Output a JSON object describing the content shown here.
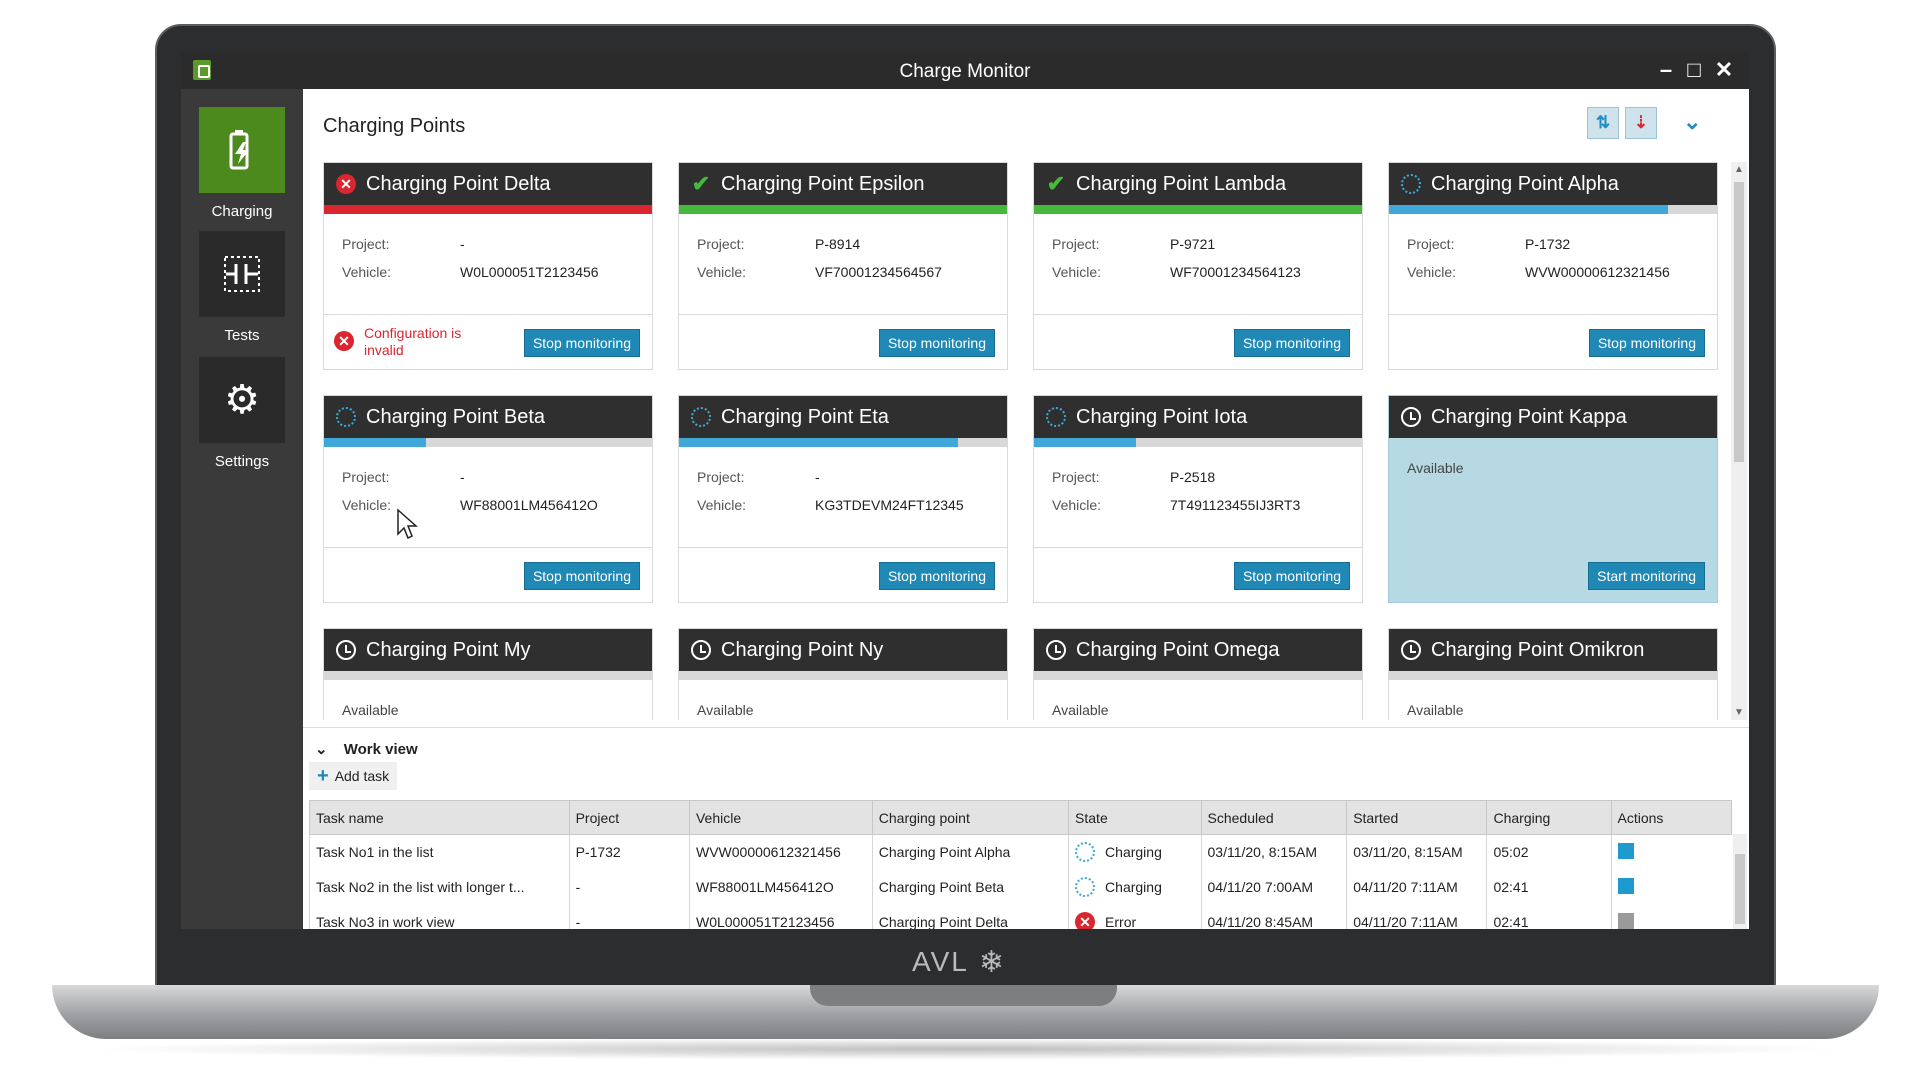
{
  "window": {
    "title": "Charge Monitor",
    "minimize": "–",
    "maximize": "□",
    "close": "✕"
  },
  "sidebar": {
    "items": [
      {
        "label": "Charging",
        "icon": "battery-charging-icon",
        "active": true
      },
      {
        "label": "Tests",
        "icon": "tests-icon",
        "active": false
      },
      {
        "label": "Settings",
        "icon": "gear-icon",
        "active": false
      }
    ]
  },
  "main": {
    "page_title": "Charging Points"
  },
  "colors": {
    "error": "#d9262f",
    "ok": "#46b83c",
    "charging": "#3fa8d8",
    "accent": "#1f88b5",
    "brand_green": "#4d8a1e"
  },
  "cards": [
    {
      "name": "Charging Point Delta",
      "status": "error",
      "bar_color": "#d9262f",
      "progress": 1.0,
      "project_label": "Project:",
      "project": "-",
      "vehicle_label": "Vehicle:",
      "vehicle": "W0L000051T2123456",
      "error": "Configuration is invalid",
      "button": "Stop monitoring"
    },
    {
      "name": "Charging Point Epsilon",
      "status": "ok",
      "bar_color": "#46b83c",
      "progress": 1.0,
      "project_label": "Project:",
      "project": "P-8914",
      "vehicle_label": "Vehicle:",
      "vehicle": "VF70001234564567",
      "button": "Stop monitoring"
    },
    {
      "name": "Charging Point Lambda",
      "status": "ok",
      "bar_color": "#46b83c",
      "progress": 1.0,
      "project_label": "Project:",
      "project": "P-9721",
      "vehicle_label": "Vehicle:",
      "vehicle": "WF70001234564123",
      "button": "Stop monitoring"
    },
    {
      "name": "Charging Point Alpha",
      "status": "charging",
      "bar_color": "#3fa8d8",
      "progress": 0.85,
      "project_label": "Project:",
      "project": "P-1732",
      "vehicle_label": "Vehicle:",
      "vehicle": "WVW00000612321456",
      "button": "Stop monitoring"
    },
    {
      "name": "Charging Point Beta",
      "status": "charging",
      "bar_color": "#3fa8d8",
      "progress": 0.31,
      "project_label": "Project:",
      "project": "-",
      "vehicle_label": "Vehicle:",
      "vehicle": "WF88001LM456412O",
      "button": "Stop monitoring"
    },
    {
      "name": "Charging Point Eta",
      "status": "charging",
      "bar_color": "#3fa8d8",
      "progress": 0.85,
      "project_label": "Project:",
      "project": "-",
      "vehicle_label": "Vehicle:",
      "vehicle": "KG3TDEVM24FT12345",
      "button": "Stop monitoring"
    },
    {
      "name": "Charging Point Iota",
      "status": "charging",
      "bar_color": "#3fa8d8",
      "progress": 0.31,
      "project_label": "Project:",
      "project": "P-2518",
      "vehicle_label": "Vehicle:",
      "vehicle": "7T491123455IJ3RT3",
      "button": "Stop monitoring"
    },
    {
      "name": "Charging Point Kappa",
      "status": "available",
      "bar_color": "#d8d8d8",
      "progress": 0,
      "available": "Available",
      "button": "Start monitoring"
    },
    {
      "name": "Charging Point My",
      "status": "available",
      "bar_color": "#d8d8d8",
      "progress": 0,
      "available": "Available"
    },
    {
      "name": "Charging Point Ny",
      "status": "available",
      "bar_color": "#d8d8d8",
      "progress": 0,
      "available": "Available"
    },
    {
      "name": "Charging Point Omega",
      "status": "available",
      "bar_color": "#d8d8d8",
      "progress": 0,
      "available": "Available"
    },
    {
      "name": "Charging Point Omikron",
      "status": "available",
      "bar_color": "#d8d8d8",
      "progress": 0,
      "available": "Available"
    }
  ],
  "work_view": {
    "title": "Work view",
    "add_task": "Add task",
    "columns": [
      "Task name",
      "Project",
      "Vehicle",
      "Charging point",
      "State",
      "Scheduled",
      "Started",
      "Charging",
      "Actions"
    ],
    "rows": [
      {
        "task": "Task No1 in the list",
        "project": "P-1732",
        "vehicle": "WVW00000612321456",
        "point": "Charging Point Alpha",
        "state": "Charging",
        "state_kind": "charging",
        "scheduled": "03/11/20, 8:15AM",
        "started": "03/11/20, 8:15AM",
        "charging": "05:02",
        "action_color": "#1f9ad0"
      },
      {
        "task": "Task No2 in the list with longer t...",
        "project": "-",
        "vehicle": "WF88001LM456412O",
        "point": "Charging Point Beta",
        "state": "Charging",
        "state_kind": "charging",
        "scheduled": "04/11/20 7:00AM",
        "started": "04/11/20 7:11AM",
        "charging": "02:41",
        "action_color": "#1f9ad0"
      },
      {
        "task": "Task No3 in work view",
        "project": "-",
        "vehicle": "W0L000051T2123456",
        "point": "Charging Point Delta",
        "state": "Error",
        "state_kind": "error",
        "scheduled": "04/11/20 8:45AM",
        "started": "04/11/20 7:11AM",
        "charging": "02:41",
        "action_color": "#9a9a9a"
      }
    ]
  },
  "device": {
    "brand": "AVL"
  }
}
